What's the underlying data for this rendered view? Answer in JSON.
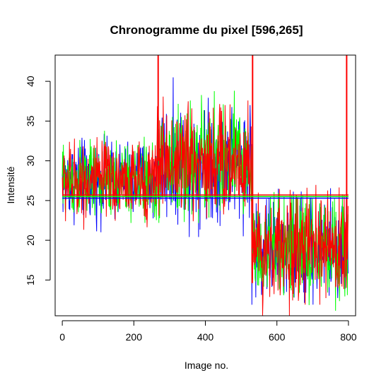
{
  "chart_data": {
    "type": "line",
    "title": "Chronogramme du pixel [596,265]",
    "xlabel": "Image no.",
    "ylabel": "Intensité",
    "xlim": [
      -20,
      820
    ],
    "ylim": [
      10.5,
      43.3
    ],
    "xticks": [
      0,
      200,
      400,
      600,
      800
    ],
    "yticks": [
      15,
      20,
      25,
      30,
      35,
      40
    ],
    "grid": false,
    "legend": "none",
    "n_points": 800,
    "segments": [
      {
        "x_start": 0,
        "x_end": 265,
        "level": 27.5,
        "spread": 3.0
      },
      {
        "x_start": 265,
        "x_end": 530,
        "level": 30.0,
        "spread": 4.5
      },
      {
        "x_start": 530,
        "x_end": 800,
        "level": 19.0,
        "spread": 4.0
      }
    ],
    "series": [
      {
        "color": "#0000ff",
        "mean": 25.3
      },
      {
        "color": "#00ff00",
        "mean": 25.5
      },
      {
        "color": "#ff0000",
        "mean": 25.7
      }
    ],
    "spikes": [
      {
        "x": 268,
        "series": 2,
        "to": 43.3
      },
      {
        "x": 532,
        "series": 2,
        "to": 43.3
      },
      {
        "x": 795,
        "series": 2,
        "to": 43.3
      }
    ]
  }
}
